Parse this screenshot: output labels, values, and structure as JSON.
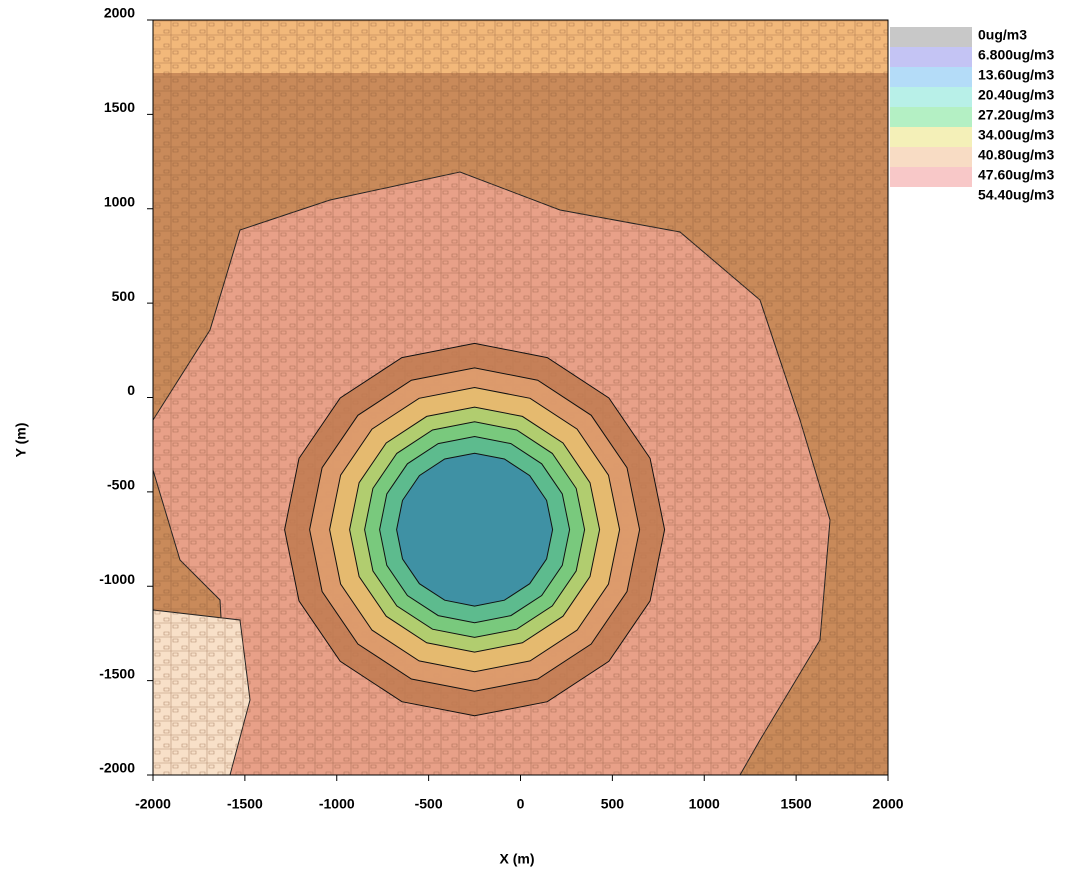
{
  "chart_data": {
    "type": "contour",
    "xlabel": "X (m)",
    "ylabel": "Y (m)",
    "xlim": [
      -2000,
      2000
    ],
    "ylim": [
      -2000,
      2000
    ],
    "xticks": [
      -2000,
      -1500,
      -1000,
      -500,
      0,
      500,
      1000,
      1500,
      2000
    ],
    "yticks": [
      -2000,
      -1500,
      -1000,
      -500,
      0,
      500,
      1000,
      1500,
      2000
    ],
    "levels": [
      {
        "value": 0,
        "label": "0ug/m3",
        "color": "#c8c8c8"
      },
      {
        "value": 6.8,
        "label": "6.800ug/m3",
        "color": "#c4c4f4"
      },
      {
        "value": 13.6,
        "label": "13.60ug/m3",
        "color": "#b4dcf8"
      },
      {
        "value": 20.4,
        "label": "20.40ug/m3",
        "color": "#b8f0e8"
      },
      {
        "value": 27.2,
        "label": "27.20ug/m3",
        "color": "#b4f0c4"
      },
      {
        "value": 34.0,
        "label": "34.00ug/m3",
        "color": "#f4f0b8"
      },
      {
        "value": 40.8,
        "label": "40.80ug/m3",
        "color": "#f8dcc4"
      },
      {
        "value": 47.6,
        "label": "47.60ug/m3",
        "color": "#f8c8c8"
      },
      {
        "value": 54.4,
        "label": "54.40ug/m3",
        "color": "#ffffff"
      }
    ]
  }
}
